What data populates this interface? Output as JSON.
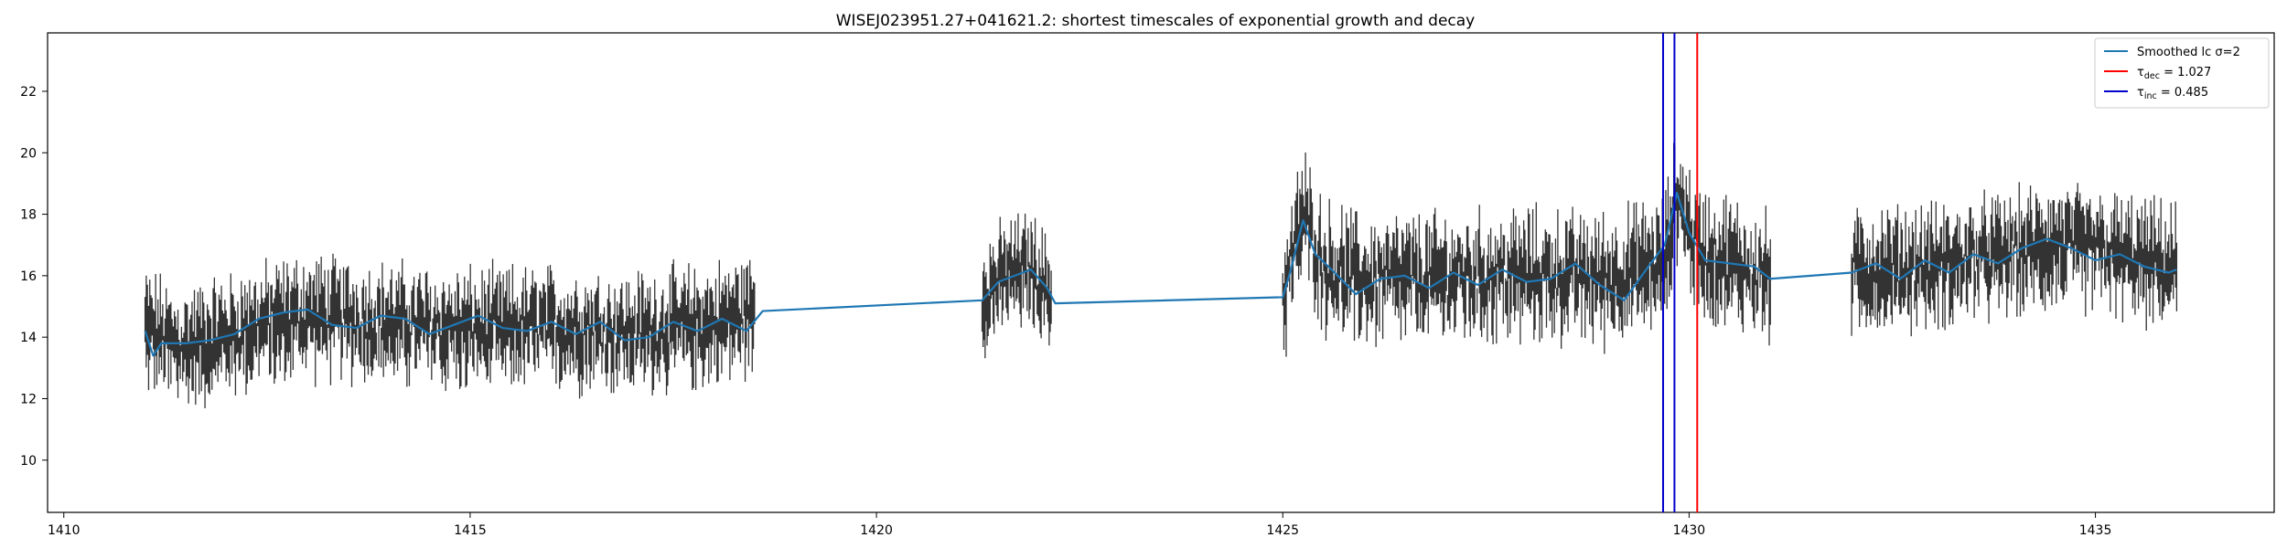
{
  "chart_data": {
    "type": "line",
    "title": "WISEJ023951.27+041621.2: shortest timescales of exponential growth and decay",
    "xlabel": "",
    "ylabel": "",
    "xlim": [
      1409.8,
      1437.2
    ],
    "ylim": [
      8.3,
      23.9
    ],
    "xticks": [
      1410,
      1415,
      1420,
      1425,
      1430,
      1435
    ],
    "yticks": [
      10,
      12,
      14,
      16,
      18,
      20,
      22
    ],
    "grid": false,
    "legend_position": "top-right",
    "colors": {
      "data": "#333333",
      "smoothed": "#1f77b4",
      "decay": "#ff0000",
      "growth": "#0000cc"
    },
    "segments": [
      {
        "x_start": 1411.0,
        "x_end": 1418.5,
        "base_profile": [
          [
            1411.0,
            14.3
          ],
          [
            1411.4,
            13.6
          ],
          [
            1412.5,
            14.4
          ],
          [
            1413.0,
            14.7
          ],
          [
            1414.0,
            14.4
          ],
          [
            1415.0,
            14.2
          ],
          [
            1416.0,
            14.3
          ],
          [
            1417.0,
            14.1
          ],
          [
            1418.0,
            14.4
          ],
          [
            1418.5,
            14.8
          ]
        ],
        "noise": 1.1,
        "count": 520
      },
      {
        "x_start": 1421.3,
        "x_end": 1422.15,
        "base_profile": [
          [
            1421.3,
            15.3
          ],
          [
            1421.6,
            16.0
          ],
          [
            1421.9,
            16.2
          ],
          [
            1422.15,
            15.3
          ]
        ],
        "noise": 1.0,
        "count": 70
      },
      {
        "x_start": 1425.0,
        "x_end": 1431.0,
        "base_profile": [
          [
            1425.0,
            15.2
          ],
          [
            1425.25,
            18.0
          ],
          [
            1425.5,
            16.3
          ],
          [
            1426.0,
            15.8
          ],
          [
            1427.0,
            15.9
          ],
          [
            1428.0,
            16.0
          ],
          [
            1429.0,
            15.9
          ],
          [
            1429.7,
            16.4
          ],
          [
            1429.85,
            18.7
          ],
          [
            1430.1,
            16.8
          ],
          [
            1431.0,
            15.9
          ]
        ],
        "noise": 1.2,
        "count": 430
      },
      {
        "x_start": 1432.0,
        "x_end": 1436.0,
        "base_profile": [
          [
            1432.0,
            16.1
          ],
          [
            1433.0,
            16.3
          ],
          [
            1434.0,
            16.7
          ],
          [
            1434.5,
            17.0
          ],
          [
            1435.0,
            16.8
          ],
          [
            1436.0,
            16.2
          ]
        ],
        "noise": 1.1,
        "count": 290
      }
    ],
    "series": [
      {
        "name": "Smoothed lc σ=2",
        "values": [
          [
            1411.0,
            14.2
          ],
          [
            1411.1,
            13.4
          ],
          [
            1411.2,
            13.8
          ],
          [
            1411.5,
            13.8
          ],
          [
            1411.8,
            13.9
          ],
          [
            1412.1,
            14.1
          ],
          [
            1412.4,
            14.6
          ],
          [
            1412.7,
            14.8
          ],
          [
            1413.0,
            14.9
          ],
          [
            1413.3,
            14.4
          ],
          [
            1413.6,
            14.3
          ],
          [
            1413.9,
            14.7
          ],
          [
            1414.2,
            14.6
          ],
          [
            1414.5,
            14.1
          ],
          [
            1414.8,
            14.4
          ],
          [
            1415.1,
            14.7
          ],
          [
            1415.4,
            14.3
          ],
          [
            1415.7,
            14.2
          ],
          [
            1416.0,
            14.5
          ],
          [
            1416.3,
            14.1
          ],
          [
            1416.6,
            14.5
          ],
          [
            1416.9,
            13.9
          ],
          [
            1417.2,
            14.0
          ],
          [
            1417.5,
            14.5
          ],
          [
            1417.8,
            14.2
          ],
          [
            1418.1,
            14.6
          ],
          [
            1418.4,
            14.2
          ],
          [
            1418.6,
            14.85
          ],
          [
            1421.3,
            15.2
          ],
          [
            1421.5,
            15.8
          ],
          [
            1421.7,
            16.0
          ],
          [
            1421.9,
            16.2
          ],
          [
            1422.1,
            15.6
          ],
          [
            1422.2,
            15.1
          ],
          [
            1425.0,
            15.3
          ],
          [
            1425.1,
            16.2
          ],
          [
            1425.25,
            17.8
          ],
          [
            1425.4,
            16.7
          ],
          [
            1425.6,
            16.2
          ],
          [
            1425.9,
            15.4
          ],
          [
            1426.2,
            15.9
          ],
          [
            1426.5,
            16.0
          ],
          [
            1426.8,
            15.6
          ],
          [
            1427.1,
            16.1
          ],
          [
            1427.4,
            15.7
          ],
          [
            1427.7,
            16.2
          ],
          [
            1428.0,
            15.8
          ],
          [
            1428.3,
            15.9
          ],
          [
            1428.6,
            16.4
          ],
          [
            1428.9,
            15.7
          ],
          [
            1429.2,
            15.2
          ],
          [
            1429.5,
            16.3
          ],
          [
            1429.7,
            17.0
          ],
          [
            1429.85,
            18.7
          ],
          [
            1430.0,
            17.4
          ],
          [
            1430.2,
            16.5
          ],
          [
            1430.5,
            16.4
          ],
          [
            1430.8,
            16.3
          ],
          [
            1431.0,
            15.9
          ],
          [
            1432.0,
            16.1
          ],
          [
            1432.3,
            16.4
          ],
          [
            1432.6,
            15.9
          ],
          [
            1432.9,
            16.5
          ],
          [
            1433.2,
            16.1
          ],
          [
            1433.5,
            16.7
          ],
          [
            1433.8,
            16.4
          ],
          [
            1434.1,
            16.9
          ],
          [
            1434.4,
            17.2
          ],
          [
            1434.7,
            16.9
          ],
          [
            1435.0,
            16.5
          ],
          [
            1435.3,
            16.7
          ],
          [
            1435.6,
            16.3
          ],
          [
            1435.9,
            16.1
          ],
          [
            1436.0,
            16.2
          ]
        ]
      }
    ],
    "vlines": [
      {
        "name": "τ_dec = 1.027",
        "x": 1430.1,
        "color": "#ff0000"
      },
      {
        "name": "τ_inc = 0.485",
        "x": 1429.68,
        "color": "#0000cc"
      },
      {
        "name": "",
        "x": 1429.82,
        "color": "#0000cc"
      }
    ],
    "legend": [
      {
        "label": "Smoothed lc σ=2",
        "color": "#1f77b4"
      },
      {
        "label_main": "τ",
        "label_sub": "dec",
        "label_rest": " = 1.027",
        "color": "#ff0000"
      },
      {
        "label_main": "τ",
        "label_sub": "inc",
        "label_rest": " = 0.485",
        "color": "#0000cc"
      }
    ]
  }
}
